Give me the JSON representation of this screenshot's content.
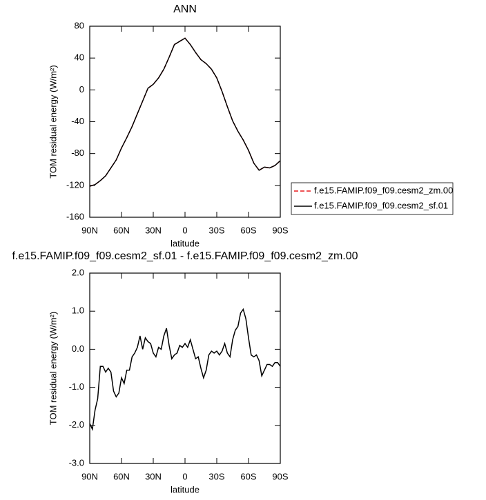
{
  "chart_data": [
    {
      "type": "line",
      "title": "ANN",
      "xlabel": "latitude",
      "ylabel": "TOM residual energy (W/m²)",
      "x": [
        90,
        85,
        80,
        75,
        70,
        65,
        60,
        55,
        50,
        45,
        40,
        35,
        30,
        25,
        20,
        15,
        10,
        5,
        0,
        -5,
        -10,
        -15,
        -20,
        -25,
        -30,
        -35,
        -40,
        -45,
        -50,
        -55,
        -60,
        -65,
        -70,
        -75,
        -80,
        -85,
        -90
      ],
      "series": [
        {
          "name": "f.e15.FAMIP.f09_f09.cesm2_zm.00",
          "color": "#e8191c",
          "line_style": "dashed",
          "values": [
            -121,
            -119,
            -114,
            -108,
            -98,
            -88,
            -73,
            -60,
            -46,
            -30,
            -14,
            2,
            7,
            15,
            26,
            41,
            57,
            61,
            65,
            57,
            47,
            38,
            33,
            26,
            15,
            -2,
            -21,
            -39,
            -52,
            -63,
            -76,
            -92,
            -101,
            -97,
            -98,
            -95,
            -89
          ]
        },
        {
          "name": "f.e15.FAMIP.f09_f09.cesm2_sf.01",
          "color": "#000000",
          "line_style": "solid",
          "values": [
            -121,
            -119,
            -114,
            -108,
            -98,
            -88,
            -73,
            -60,
            -46,
            -30,
            -14,
            2,
            7,
            15,
            26,
            41,
            57,
            61,
            65,
            57,
            47,
            38,
            33,
            26,
            15,
            -2,
            -21,
            -39,
            -52,
            -63,
            -76,
            -92,
            -101,
            -97,
            -98,
            -95,
            -89
          ]
        }
      ],
      "xlim": [
        90,
        -90
      ],
      "xticks": [
        {
          "value": 90,
          "label": "90N"
        },
        {
          "value": 60,
          "label": "60N"
        },
        {
          "value": 30,
          "label": "30N"
        },
        0,
        {
          "value": -30,
          "label": "30S"
        },
        {
          "value": -60,
          "label": "60S"
        },
        {
          "value": -90,
          "label": "90S"
        }
      ],
      "ylim": [
        -160,
        80
      ],
      "yticks": [
        80,
        40,
        0,
        -40,
        -80,
        -120,
        -160
      ],
      "legend": "outside-right"
    },
    {
      "type": "line",
      "title": "f.e15.FAMIP.f09_f09.cesm2_sf.01 - f.e15.FAMIP.f09_f09.cesm2_zm.00",
      "xlabel": "latitude",
      "ylabel": "TOM residual energy (W/m²)",
      "x": [
        90,
        87.5,
        85,
        82.5,
        80,
        77.5,
        75,
        72.5,
        70,
        67.5,
        65,
        62.5,
        60,
        57.5,
        55,
        52.5,
        50,
        47.5,
        45,
        42.5,
        40,
        37.5,
        35,
        32.5,
        30,
        27.5,
        25,
        22.5,
        20,
        17.5,
        15,
        12.5,
        10,
        7.5,
        5,
        2.5,
        0,
        -2.5,
        -5,
        -7.5,
        -10,
        -12.5,
        -15,
        -17.5,
        -20,
        -22.5,
        -25,
        -27.5,
        -30,
        -32.5,
        -35,
        -37.5,
        -40,
        -42.5,
        -45,
        -47.5,
        -50,
        -52.5,
        -55,
        -57.5,
        -60,
        -62.5,
        -65,
        -67.5,
        -70,
        -72.5,
        -75,
        -77.5,
        -80,
        -82.5,
        -85,
        -87.5,
        -90
      ],
      "series": [
        {
          "name": "f.e15.FAMIP.f09_f09.cesm2_sf.01 - f.e15.FAMIP.f09_f09.cesm2_zm.00",
          "color": "#000000",
          "line_style": "solid",
          "values": [
            -1.95,
            -2.1,
            -1.6,
            -1.3,
            -0.45,
            -0.45,
            -0.6,
            -0.5,
            -0.6,
            -1.1,
            -1.25,
            -1.15,
            -0.75,
            -0.9,
            -0.55,
            -0.55,
            -0.2,
            -0.1,
            0.05,
            0.35,
            0.0,
            0.3,
            0.2,
            0.15,
            -0.1,
            -0.2,
            0.05,
            0.0,
            0.35,
            0.55,
            0.1,
            -0.25,
            -0.15,
            -0.1,
            0.1,
            0.05,
            0.15,
            0.05,
            0.25,
            0.0,
            -0.25,
            -0.2,
            -0.5,
            -0.75,
            -0.55,
            -0.15,
            -0.05,
            -0.1,
            -0.05,
            -0.15,
            -0.05,
            0.15,
            -0.1,
            -0.2,
            0.25,
            0.5,
            0.6,
            0.95,
            1.05,
            0.8,
            0.3,
            -0.15,
            -0.2,
            -0.15,
            -0.3,
            -0.7,
            -0.55,
            -0.4,
            -0.4,
            -0.45,
            -0.35,
            -0.35,
            -0.45
          ]
        }
      ],
      "xlim": [
        90,
        -90
      ],
      "xticks": [
        {
          "value": 90,
          "label": "90N"
        },
        {
          "value": 60,
          "label": "60N"
        },
        {
          "value": 30,
          "label": "30N"
        },
        0,
        {
          "value": -30,
          "label": "30S"
        },
        {
          "value": -60,
          "label": "60S"
        },
        {
          "value": -90,
          "label": "90S"
        }
      ],
      "ylim": [
        -3,
        2
      ],
      "yticks": [
        {
          "value": 2,
          "label": "2.0"
        },
        {
          "value": 1,
          "label": "1.0"
        },
        {
          "value": 0,
          "label": "0.0"
        },
        {
          "value": -1,
          "label": "-1.0"
        },
        {
          "value": -2,
          "label": "-2.0"
        },
        {
          "value": -3,
          "label": "-3.0"
        }
      ]
    }
  ]
}
